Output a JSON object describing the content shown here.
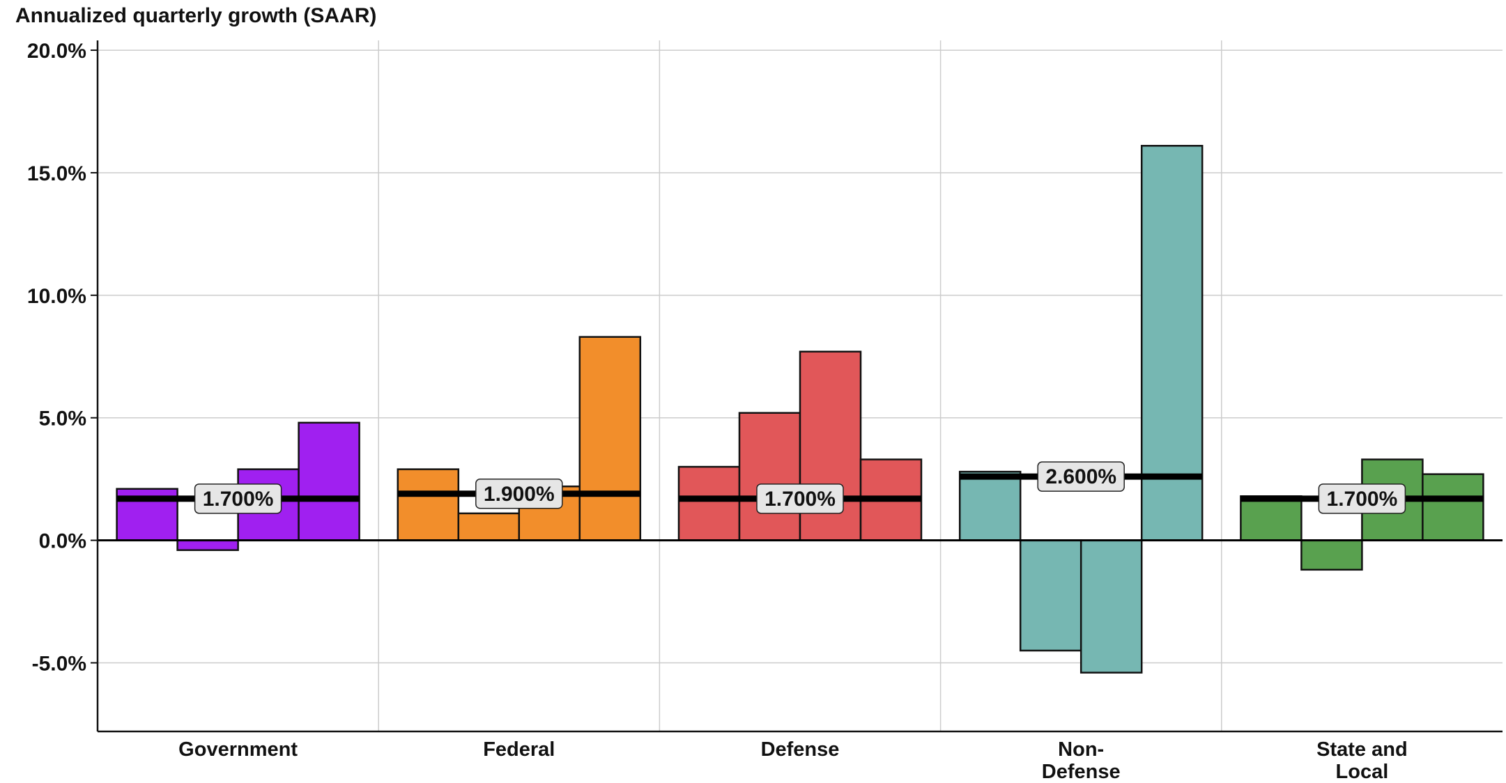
{
  "chart_data": {
    "type": "bar",
    "ylabel": "Annualized quarterly growth (SAAR)",
    "ylim": [
      -7.8,
      20.4
    ],
    "yticks": [
      -5,
      0,
      5,
      10,
      15,
      20
    ],
    "ytick_labels": [
      "-5.0%",
      "0.0%",
      "5.0%",
      "10.0%",
      "15.0%",
      "20.0%"
    ],
    "categories": [
      "Government",
      "Federal",
      "Defense",
      "Non-\nDefense",
      "State and\nLocal"
    ],
    "groups": [
      {
        "name": "Government",
        "color": "#A020F0",
        "values": [
          2.1,
          -0.4,
          2.9,
          4.8
        ],
        "average": 1.7,
        "average_label": "1.700%"
      },
      {
        "name": "Federal",
        "color": "#F28E2B",
        "values": [
          2.9,
          1.1,
          2.2,
          8.3
        ],
        "average": 1.9,
        "average_label": "1.900%"
      },
      {
        "name": "Defense",
        "color": "#E15759",
        "values": [
          3.0,
          5.2,
          7.7,
          3.3
        ],
        "average": 1.7,
        "average_label": "1.700%"
      },
      {
        "name": "Non-Defense",
        "color": "#76B7B2",
        "values": [
          2.8,
          -4.5,
          -5.4,
          16.1
        ],
        "average": 2.6,
        "average_label": "2.600%"
      },
      {
        "name": "State and Local",
        "color": "#59A14F",
        "values": [
          1.8,
          -1.2,
          3.3,
          2.7
        ],
        "average": 1.7,
        "average_label": "1.700%"
      }
    ],
    "grid": true,
    "legend": "none"
  }
}
